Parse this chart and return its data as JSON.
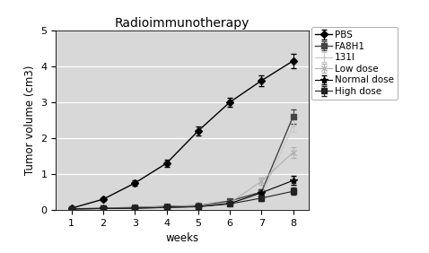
{
  "title": "Radioimmunotherapy",
  "xlabel": "weeks",
  "ylabel": "Tumor volume (cm3)",
  "weeks": [
    1,
    2,
    3,
    4,
    5,
    6,
    7,
    8
  ],
  "series": {
    "PBS": {
      "y": [
        0.05,
        0.3,
        0.75,
        1.3,
        2.2,
        3.0,
        3.6,
        4.15
      ],
      "yerr": [
        0.04,
        0.05,
        0.07,
        0.09,
        0.12,
        0.12,
        0.15,
        0.2
      ],
      "color": "#000000",
      "marker": "D",
      "markersize": 4,
      "markerfacecolor": "#000000",
      "linestyle": "-",
      "linewidth": 1.0
    },
    "FA8H1": {
      "y": [
        0.03,
        0.05,
        0.07,
        0.1,
        0.12,
        0.25,
        0.5,
        2.6
      ],
      "yerr": [
        0.02,
        0.02,
        0.02,
        0.03,
        0.04,
        0.05,
        0.08,
        0.2
      ],
      "color": "#444444",
      "marker": "s",
      "markersize": 4,
      "markerfacecolor": "#444444",
      "linestyle": "-",
      "linewidth": 1.0
    },
    "131I": {
      "y": [
        0.03,
        0.04,
        0.06,
        0.08,
        0.12,
        0.2,
        0.4,
        2.35
      ],
      "yerr": [
        0.02,
        0.02,
        0.02,
        0.03,
        0.04,
        0.05,
        0.08,
        0.18
      ],
      "color": "#c8c8c8",
      "marker": "+",
      "markersize": 5,
      "markerfacecolor": "#c8c8c8",
      "linestyle": "-",
      "linewidth": 0.8
    },
    "Low dose": {
      "y": [
        0.03,
        0.04,
        0.06,
        0.08,
        0.12,
        0.2,
        0.8,
        1.6
      ],
      "yerr": [
        0.02,
        0.02,
        0.02,
        0.03,
        0.04,
        0.05,
        0.1,
        0.14
      ],
      "color": "#b0b0b0",
      "marker": "x",
      "markersize": 5,
      "markerfacecolor": "#b0b0b0",
      "linestyle": "-",
      "linewidth": 0.8
    },
    "Normal dose": {
      "y": [
        0.03,
        0.04,
        0.05,
        0.07,
        0.1,
        0.18,
        0.48,
        0.82
      ],
      "yerr": [
        0.02,
        0.02,
        0.02,
        0.02,
        0.03,
        0.04,
        0.08,
        0.12
      ],
      "color": "#000000",
      "marker": "*",
      "markersize": 6,
      "markerfacecolor": "#000000",
      "linestyle": "-",
      "linewidth": 0.8
    },
    "High dose": {
      "y": [
        0.03,
        0.04,
        0.05,
        0.07,
        0.09,
        0.17,
        0.33,
        0.52
      ],
      "yerr": [
        0.02,
        0.02,
        0.02,
        0.02,
        0.03,
        0.04,
        0.07,
        0.1
      ],
      "color": "#222222",
      "marker": "s",
      "markersize": 4,
      "markerfacecolor": "#222222",
      "linestyle": "-",
      "linewidth": 0.8
    }
  },
  "ylim": [
    0,
    5
  ],
  "yticks": [
    0,
    1,
    2,
    3,
    4,
    5
  ],
  "xticks": [
    1,
    2,
    3,
    4,
    5,
    6,
    7,
    8
  ],
  "plot_bgcolor": "#d8d8d8",
  "fig_bgcolor": "#ffffff",
  "grid_color": "#ffffff",
  "legend_fontsize": 7.5,
  "axis_fontsize": 8.5,
  "title_fontsize": 10,
  "tick_fontsize": 8
}
